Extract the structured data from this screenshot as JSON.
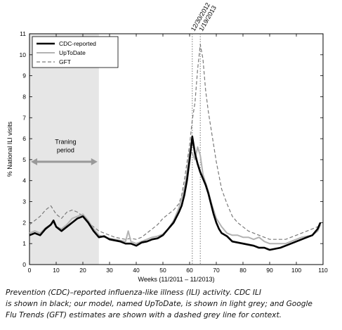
{
  "caption": {
    "line1": "Prevention (CDC)–reported influenza-like illness (ILI) activity. CDC ILI",
    "line2": "is shown in black; our model, named UpToDate, is shown in light grey; and Google",
    "line3": "Flu Trends (GFT) estimates are shown with a dashed grey line for context."
  },
  "chart_data": {
    "type": "line",
    "xlabel": "Weeks (11/2011 – 11/2013)",
    "ylabel": "% National ILI visits",
    "xlim": [
      0,
      110
    ],
    "ylim": [
      0,
      11
    ],
    "xticks": [
      0,
      10,
      20,
      30,
      40,
      50,
      60,
      70,
      80,
      90,
      100,
      110
    ],
    "yticks": [
      0,
      1,
      2,
      3,
      4,
      5,
      6,
      7,
      8,
      9,
      10,
      11
    ],
    "grid": false,
    "legend_position": "top-left",
    "training_period": {
      "label_line1": "Traning",
      "label_line2": "period",
      "x_start": 0,
      "x_end": 26,
      "arrow_y": 4.9
    },
    "vlines": [
      {
        "x": 61,
        "label": "12/30/2012"
      },
      {
        "x": 64,
        "label": "1/19/2013"
      }
    ],
    "colors": {
      "cdc": "#000000",
      "uptodate": "#b3b3b3",
      "gft": "#7a7a7a",
      "training_shade": "#e6e6e6",
      "arrow": "#999999"
    },
    "series": [
      {
        "name": "CDC-reported",
        "style": "solid-thick",
        "x": [
          0,
          2,
          4,
          6,
          8,
          9,
          10,
          12,
          14,
          16,
          18,
          20,
          22,
          24,
          26,
          28,
          30,
          32,
          34,
          36,
          38,
          40,
          42,
          44,
          46,
          48,
          50,
          52,
          54,
          56,
          57,
          58,
          59,
          60,
          61,
          62,
          63,
          64,
          65,
          66,
          67,
          68,
          69,
          70,
          71,
          72,
          74,
          76,
          78,
          80,
          82,
          84,
          86,
          88,
          90,
          92,
          94,
          96,
          98,
          100,
          102,
          104,
          106,
          108,
          109
        ],
        "y": [
          1.4,
          1.5,
          1.4,
          1.7,
          1.9,
          2.1,
          1.8,
          1.6,
          1.8,
          2.0,
          2.2,
          2.3,
          2.0,
          1.6,
          1.3,
          1.35,
          1.2,
          1.15,
          1.1,
          1.0,
          1.0,
          0.9,
          1.05,
          1.1,
          1.2,
          1.25,
          1.4,
          1.7,
          2.0,
          2.5,
          2.8,
          3.3,
          4.0,
          5.0,
          6.1,
          5.3,
          4.8,
          4.4,
          4.1,
          3.8,
          3.4,
          2.9,
          2.4,
          2.0,
          1.7,
          1.5,
          1.35,
          1.1,
          1.05,
          1.0,
          0.95,
          0.9,
          0.8,
          0.8,
          0.7,
          0.75,
          0.8,
          0.9,
          1.0,
          1.1,
          1.2,
          1.3,
          1.4,
          1.7,
          2.0
        ]
      },
      {
        "name": "UpToDate",
        "style": "solid-light",
        "x": [
          0,
          2,
          4,
          6,
          8,
          9,
          10,
          12,
          14,
          16,
          18,
          20,
          22,
          24,
          26,
          28,
          30,
          32,
          34,
          36,
          37,
          38,
          40,
          42,
          44,
          46,
          48,
          50,
          52,
          54,
          56,
          58,
          59,
          60,
          61,
          62,
          63,
          64,
          65,
          66,
          67,
          68,
          70,
          72,
          74,
          76,
          78,
          80,
          82,
          84,
          86,
          88,
          90,
          92,
          94,
          96,
          98,
          100,
          102,
          104,
          106,
          108,
          109
        ],
        "y": [
          1.5,
          1.6,
          1.5,
          1.75,
          1.9,
          2.0,
          1.8,
          1.7,
          1.9,
          2.2,
          2.3,
          2.4,
          2.1,
          1.7,
          1.4,
          1.3,
          1.25,
          1.2,
          1.15,
          1.1,
          1.6,
          1.1,
          1.0,
          1.1,
          1.2,
          1.3,
          1.35,
          1.45,
          1.7,
          2.1,
          2.7,
          3.6,
          4.4,
          5.4,
          5.3,
          5.0,
          5.6,
          5.2,
          4.3,
          3.9,
          3.5,
          3.0,
          2.2,
          1.8,
          1.5,
          1.4,
          1.4,
          1.3,
          1.3,
          1.2,
          1.3,
          1.1,
          1.0,
          1.0,
          1.0,
          1.0,
          1.1,
          1.2,
          1.3,
          1.35,
          1.4,
          1.6,
          1.9
        ]
      },
      {
        "name": "GFT",
        "style": "dashed",
        "x": [
          0,
          4,
          6,
          8,
          10,
          12,
          14,
          16,
          18,
          20,
          22,
          24,
          26,
          28,
          30,
          32,
          34,
          36,
          38,
          40,
          42,
          44,
          46,
          48,
          50,
          52,
          54,
          56,
          57,
          58,
          60,
          61,
          62,
          63,
          64,
          65,
          66,
          67,
          68,
          69,
          70,
          72,
          74,
          76,
          78,
          80,
          82,
          84,
          86,
          88,
          90,
          92,
          94,
          96,
          98,
          100,
          102,
          104,
          106,
          108,
          109
        ],
        "y": [
          1.9,
          2.3,
          2.6,
          2.8,
          2.4,
          2.2,
          2.5,
          2.6,
          2.5,
          2.3,
          2.0,
          1.8,
          1.6,
          1.5,
          1.4,
          1.3,
          1.25,
          1.2,
          1.25,
          1.2,
          1.3,
          1.5,
          1.7,
          1.9,
          2.2,
          2.4,
          2.6,
          2.9,
          3.3,
          4.0,
          5.7,
          6.9,
          7.7,
          9.3,
          10.5,
          9.8,
          8.3,
          7.3,
          6.5,
          5.7,
          4.9,
          3.6,
          2.9,
          2.3,
          2.0,
          1.8,
          1.6,
          1.5,
          1.4,
          1.3,
          1.2,
          1.2,
          1.2,
          1.2,
          1.3,
          1.4,
          1.5,
          1.6,
          1.7,
          1.8,
          1.8
        ]
      }
    ]
  }
}
